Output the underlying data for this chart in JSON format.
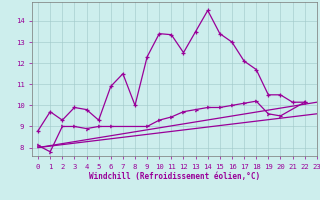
{
  "xlabel": "Windchill (Refroidissement éolien,°C)",
  "background_color": "#cdeeed",
  "line_color": "#990099",
  "xlim": [
    -0.5,
    23
  ],
  "ylim": [
    7.6,
    14.9
  ],
  "yticks": [
    8,
    9,
    10,
    11,
    12,
    13,
    14
  ],
  "xticks": [
    0,
    1,
    2,
    3,
    4,
    5,
    6,
    7,
    8,
    9,
    10,
    11,
    12,
    13,
    14,
    15,
    16,
    17,
    18,
    19,
    20,
    21,
    22,
    23
  ],
  "series1_x": [
    0,
    1,
    2,
    3,
    4,
    5,
    6,
    7,
    8,
    9,
    10,
    11,
    12,
    13,
    14,
    15,
    16,
    17,
    18,
    19,
    20,
    21,
    22
  ],
  "series1_y": [
    8.8,
    9.7,
    9.3,
    9.9,
    9.8,
    9.3,
    10.9,
    11.5,
    10.0,
    12.3,
    13.4,
    13.35,
    12.5,
    13.5,
    14.5,
    13.4,
    13.0,
    12.1,
    11.7,
    10.5,
    10.5,
    10.15,
    10.15
  ],
  "series2_x": [
    0,
    1,
    2,
    3,
    4,
    5,
    6,
    9,
    10,
    11,
    12,
    13,
    14,
    15,
    16,
    17,
    18,
    19,
    20,
    22
  ],
  "series2_y": [
    8.1,
    7.8,
    9.0,
    9.0,
    8.9,
    9.0,
    9.0,
    9.0,
    9.3,
    9.45,
    9.7,
    9.8,
    9.9,
    9.9,
    10.0,
    10.1,
    10.2,
    9.6,
    9.5,
    10.15
  ],
  "series3_x": [
    0,
    23
  ],
  "series3_y": [
    8.0,
    10.15
  ],
  "series4_x": [
    0,
    23
  ],
  "series4_y": [
    8.0,
    9.6
  ]
}
